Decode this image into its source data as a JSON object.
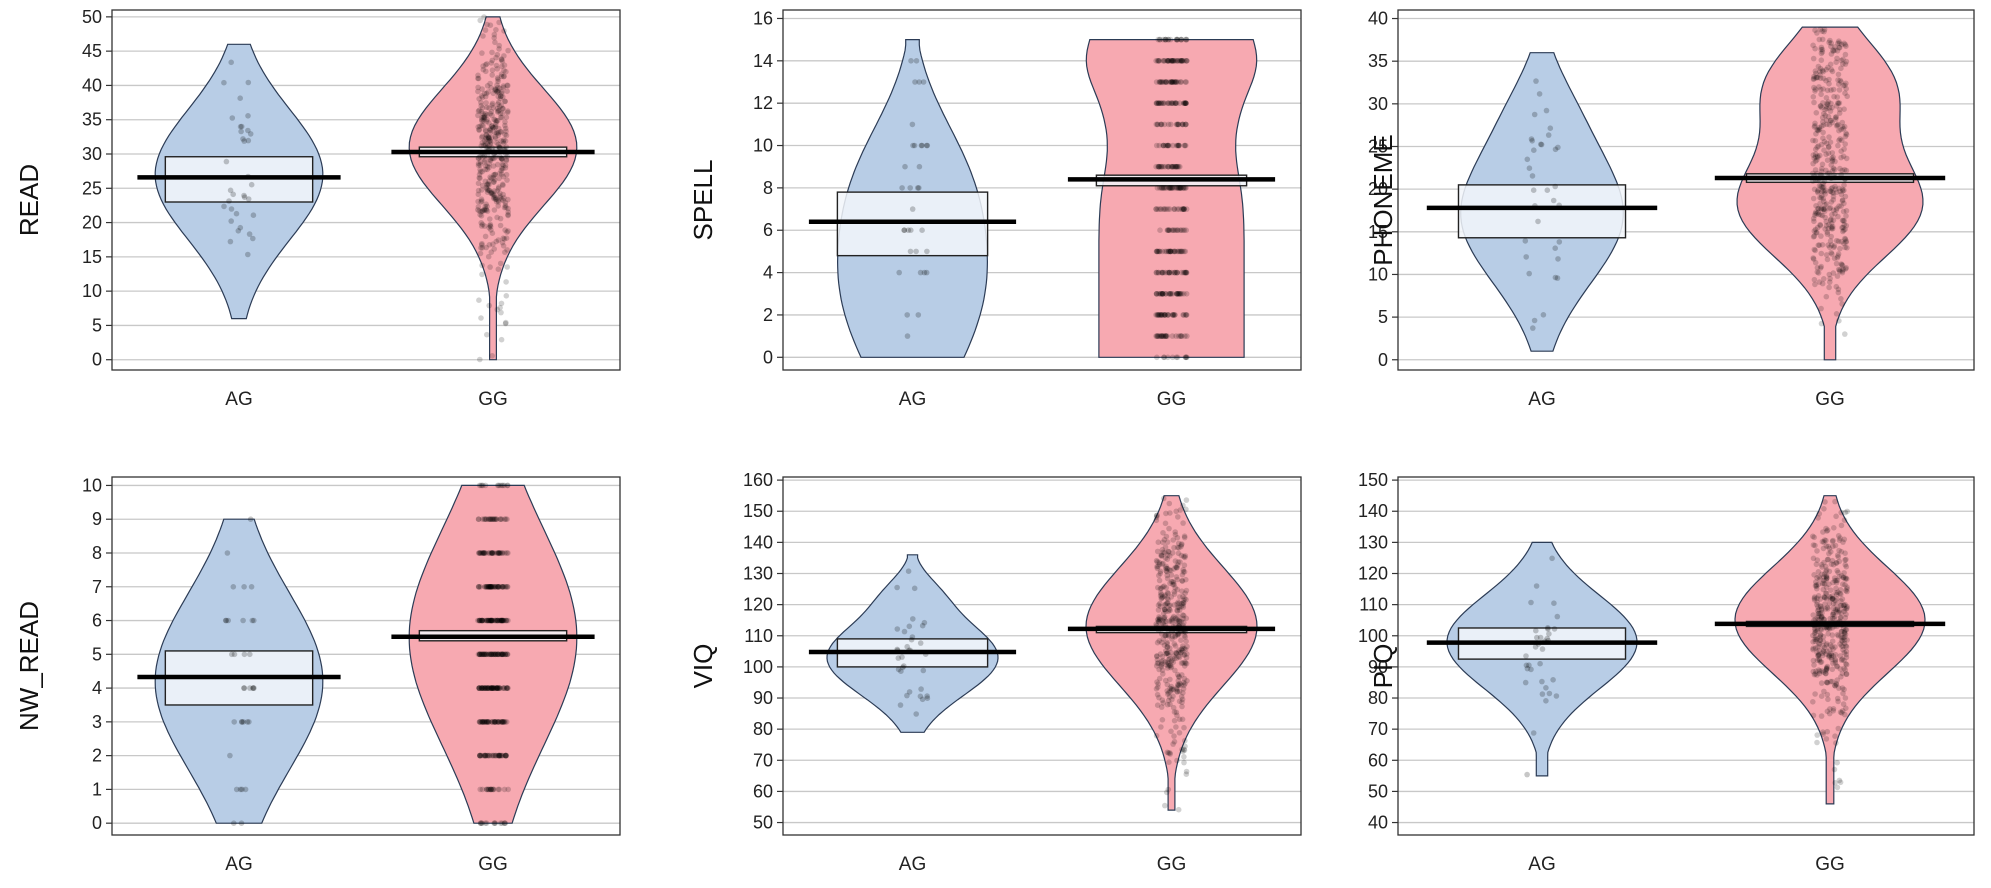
{
  "chart_data": [
    {
      "type": "pirateplot",
      "ylabel": "READ",
      "categories": [
        "AG",
        "GG"
      ],
      "yticks": [
        0,
        5,
        10,
        15,
        20,
        25,
        30,
        35,
        40,
        45,
        50
      ],
      "ylim": [
        -1.5,
        51
      ],
      "groups": [
        {
          "name": "AG",
          "min": 6,
          "max": 46,
          "mean": 26.6,
          "ci": [
            23,
            29.6
          ],
          "discrete": false
        },
        {
          "name": "GG",
          "min": 0,
          "max": 50,
          "mean": 30.3,
          "ci": [
            29.6,
            31
          ],
          "discrete": false
        }
      ]
    },
    {
      "type": "pirateplot",
      "ylabel": "SPELL",
      "categories": [
        "AG",
        "GG"
      ],
      "yticks": [
        0,
        2,
        4,
        6,
        8,
        10,
        12,
        14,
        16
      ],
      "ylim": [
        -0.6,
        16.4
      ],
      "groups": [
        {
          "name": "AG",
          "min": 0,
          "max": 15,
          "mean": 6.4,
          "ci": [
            4.8,
            7.8
          ],
          "discrete": true
        },
        {
          "name": "GG",
          "min": 0,
          "max": 15,
          "mean": 8.4,
          "ci": [
            8.1,
            8.6
          ],
          "discrete": true
        }
      ]
    },
    {
      "type": "pirateplot",
      "ylabel": "PHONEME",
      "categories": [
        "AG",
        "GG"
      ],
      "yticks": [
        0,
        5,
        10,
        15,
        20,
        25,
        30,
        35,
        40
      ],
      "ylim": [
        -1.2,
        41
      ],
      "groups": [
        {
          "name": "AG",
          "min": 1,
          "max": 36,
          "mean": 17.8,
          "ci": [
            14.3,
            20.5
          ],
          "discrete": false
        },
        {
          "name": "GG",
          "min": 0,
          "max": 39,
          "mean": 21.3,
          "ci": [
            20.8,
            21.8
          ],
          "discrete": false
        }
      ]
    },
    {
      "type": "pirateplot",
      "ylabel": "NW_READ",
      "categories": [
        "AG",
        "GG"
      ],
      "yticks": [
        0,
        1,
        2,
        3,
        4,
        5,
        6,
        7,
        8,
        9,
        10
      ],
      "ylim": [
        -0.35,
        10.25
      ],
      "groups": [
        {
          "name": "AG",
          "min": 0,
          "max": 9,
          "mean": 4.33,
          "ci": [
            3.5,
            5.1
          ],
          "discrete": true
        },
        {
          "name": "GG",
          "min": 0,
          "max": 10,
          "mean": 5.52,
          "ci": [
            5.4,
            5.7
          ],
          "discrete": true
        }
      ]
    },
    {
      "type": "pirateplot",
      "ylabel": "VIQ",
      "categories": [
        "AG",
        "GG"
      ],
      "yticks": [
        50,
        60,
        70,
        80,
        90,
        100,
        110,
        120,
        130,
        140,
        150,
        160
      ],
      "ylim": [
        46,
        161
      ],
      "groups": [
        {
          "name": "AG",
          "min": 79,
          "max": 136,
          "mean": 104.8,
          "ci": [
            100,
            109
          ],
          "discrete": false
        },
        {
          "name": "GG",
          "min": 54,
          "max": 155,
          "mean": 112.2,
          "ci": [
            111,
            113
          ],
          "discrete": false
        }
      ]
    },
    {
      "type": "pirateplot",
      "ylabel": "PIQ",
      "categories": [
        "AG",
        "GG"
      ],
      "yticks": [
        40,
        50,
        60,
        70,
        80,
        90,
        100,
        110,
        120,
        130,
        140,
        150
      ],
      "ylim": [
        36,
        151
      ],
      "groups": [
        {
          "name": "AG",
          "min": 55,
          "max": 130,
          "mean": 97.8,
          "ci": [
            92.5,
            102.5
          ],
          "discrete": false
        },
        {
          "name": "GG",
          "min": 46,
          "max": 145,
          "mean": 103.8,
          "ci": [
            103,
            104.6
          ],
          "discrete": false
        }
      ]
    }
  ],
  "colors": {
    "AG": "#b8cde6",
    "GG": "#f7a9b1",
    "grid": "#c8c8c8",
    "mean_line": "#000000",
    "ci_box": "#f2f6fa",
    "points": "#000000"
  }
}
